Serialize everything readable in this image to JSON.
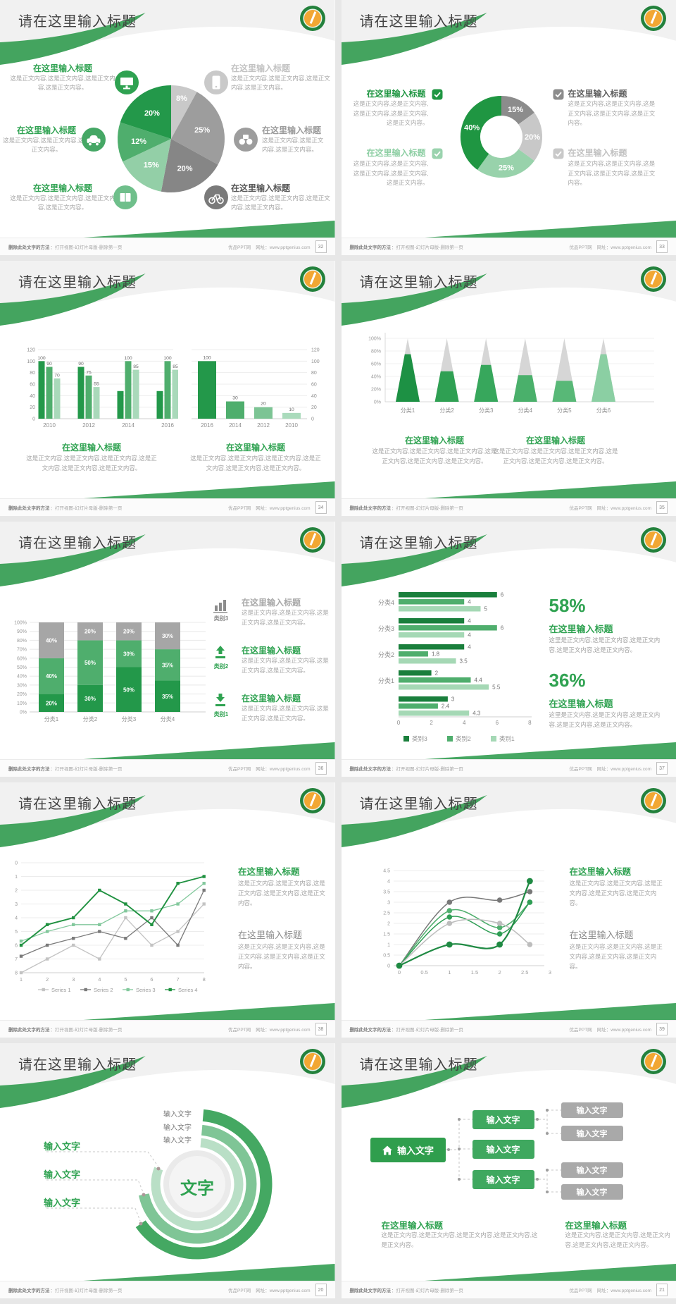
{
  "common": {
    "slide_title": "请在这里输入标题",
    "footer_left_bold": "删除此处文字的方法",
    "footer_left_rest": "：打开视图-幻灯片母版-删除第一页",
    "footer_site": "优品PPT网",
    "footer_url": "网址：www.pptgenius.com"
  },
  "pages": [
    "32",
    "33",
    "34",
    "35",
    "36",
    "37",
    "38",
    "39",
    "20",
    "21"
  ],
  "slides": [
    {
      "callouts": [
        {
          "icon": "monitor",
          "title": "在这里输入标题",
          "body": "这是正文内容,这是正文内容,这是正文内容,这是正文内容。"
        },
        {
          "icon": "car",
          "title": "在这里输入标题",
          "body": "这是正文内容,这是正文内容,这是正文内容。"
        },
        {
          "icon": "book",
          "title": "在这里输入标题",
          "body": "这是正文内容,这是正文内容,这是正文内容,这是正文内容。"
        },
        {
          "icon": "smartphone",
          "title": "在这里输入标题",
          "body": "这是正文内容,这是正文内容,这是正文内容,这是正文内容。"
        },
        {
          "icon": "binoculars",
          "title": "在这里输入标题",
          "body": "这是正文内容,这是正文内容,这是正文内容。"
        },
        {
          "icon": "bicycle",
          "title": "在这里输入标题",
          "body": "这是正文内容,这是正文内容,这是正文内容,这是正文内容。"
        }
      ]
    },
    {
      "callouts": [
        {
          "title": "在这里输入标题",
          "body": "这是正文内容,这是正文内容,这是正文内容,这是正文内容,这是正文内容。"
        },
        {
          "title": "在这里输入标题",
          "body": "这是正文内容,这是正文内容,这是正文内容,这是正文内容,这是正文内容。"
        },
        {
          "title": "在这里输入标题",
          "body": "这是正文内容,这是正文内容,这是正文内容,这是正文内容,这是正文内容。"
        },
        {
          "title": "在这里输入标题",
          "body": "这是正文内容,这是正文内容,这是正文内容,这是正文内容,这是正文内容。"
        }
      ]
    },
    {
      "blocks": [
        {
          "title": "在这里输入标题",
          "body": "这是正文内容,这是正文内容,这是正文内容,这是正文内容,这是正文内容,这是正文内容。"
        },
        {
          "title": "在这里输入标题",
          "body": "这是正文内容,这是正文内容,这是正文内容,这是正文内容,这是正文内容,这是正文内容。"
        }
      ]
    },
    {
      "blocks": [
        {
          "title": "在这里输入标题",
          "body": "这是正文内容,这是正文内容,这是正文内容,这是正文内容,这是正文内容,这是正文内容。"
        },
        {
          "title": "在这里输入标题",
          "body": "这是正文内容,这是正文内容,这是正文内容,这是正文内容,这是正文内容,这是正文内容。"
        }
      ]
    },
    {
      "callouts": [
        {
          "cat": "类别3",
          "icon": "bars",
          "title": "在这里输入标题",
          "body": "这是正文内容,这是正文内容,这是正文内容,这是正文内容。"
        },
        {
          "cat": "类别2",
          "icon": "upload",
          "title": "在这里输入标题",
          "body": "这是正文内容,这是正文内容,这是正文内容,这是正文内容。"
        },
        {
          "cat": "类别1",
          "icon": "download",
          "title": "在这里输入标题",
          "body": "这是正文内容,这是正文内容,这是正文内容,这是正文内容。"
        }
      ]
    },
    {
      "stats": [
        {
          "pct": "58%",
          "title": "在这里输入标题",
          "body": "这里是正文内容,这是正文内容,这是正文内容,这是正文内容,这是正文内容。"
        },
        {
          "pct": "36%",
          "title": "在这里输入标题",
          "body": "这里是正文内容,这是正文内容,这是正文内容,这是正文内容,这是正文内容。"
        }
      ]
    },
    {
      "blocks": [
        {
          "title": "在这里输入标题",
          "body": "这是正文内容,这是正文内容,这是正文内容,这是正文内容,这是正文内容。"
        },
        {
          "title": "在这里输入标题",
          "body": "这是正文内容,这是正文内容,这是正文内容,这是正文内容,这是正文内容。"
        }
      ]
    },
    {
      "blocks": [
        {
          "title": "在这里输入标题",
          "body": "这是正文内容,这是正文内容,这是正文内容,这是正文内容,这是正文内容。"
        },
        {
          "title": "在这里输入标题",
          "body": "这是正文内容,这是正文内容,这是正文内容,这是正文内容,这是正文内容。"
        }
      ]
    },
    {
      "top_labels": [
        "输入文字",
        "输入文字",
        "输入文字"
      ],
      "left_labels": [
        "输入文字",
        "输入文字",
        "输入文字"
      ],
      "center": "文字"
    },
    {
      "root": "输入文字",
      "mid": [
        "输入文字",
        "输入文字",
        "输入文字"
      ],
      "leaves": [
        "输入文字",
        "输入文字",
        "输入文字",
        "输入文字"
      ],
      "blocks": [
        {
          "title": "在这里输入标题",
          "body": "这是正文内容,这是正文内容,这是正文内容,这是正文内容,这是正文内容。"
        },
        {
          "title": "在这里输入标题",
          "body": "这是正文内容,这是正文内容,这是正文内容,这是正文内容,这是正文内容。"
        }
      ]
    }
  ],
  "chart_data": [
    {
      "slide": 1,
      "type": "pie",
      "values": [
        8,
        25,
        20,
        15,
        12,
        20
      ],
      "labels": [
        "8%",
        "25%",
        "20%",
        "15%",
        "12%",
        "20%"
      ],
      "colors": [
        "#c9c9c9",
        "#9d9d9d",
        "#868686",
        "#93cfa7",
        "#4fae6d",
        "#23984a"
      ],
      "start": "12-oclock",
      "direction": "clockwise"
    },
    {
      "slide": 2,
      "type": "pie",
      "subtype": "donut",
      "values": [
        15,
        20,
        25,
        40
      ],
      "labels": [
        "15%",
        "20%",
        "25%",
        "40%"
      ],
      "colors": [
        "#8c8c8c",
        "#c8c8c8",
        "#98d2ab",
        "#1f9642"
      ],
      "start": "12-oclock",
      "direction": "clockwise"
    },
    {
      "slide": 3,
      "type": "bar",
      "variant": "grouped",
      "categories": [
        "2010",
        "2012",
        "2014",
        "2016"
      ],
      "series": [
        {
          "values": [
            100,
            90,
            48,
            48
          ]
        },
        {
          "values": [
            90,
            75,
            100,
            100
          ]
        },
        {
          "values": [
            70,
            55,
            85,
            85
          ]
        }
      ],
      "value_labels": [
        [
          "100",
          "90",
          "70"
        ],
        [
          "90",
          "75",
          "55"
        ],
        [
          "",
          "100",
          "85"
        ],
        [
          "",
          "100",
          "85"
        ]
      ],
      "colors": [
        "#23984a",
        "#4fae6d",
        "#a9d9ba"
      ],
      "ylim": [
        0,
        120
      ],
      "yticks": [
        0,
        20,
        40,
        60,
        80,
        100,
        120
      ]
    },
    {
      "slide": 3,
      "type": "bar",
      "variant": "single",
      "categories": [
        "2016",
        "2014",
        "2012",
        "2010"
      ],
      "values": [
        100,
        30,
        20,
        10
      ],
      "value_labels": [
        "100",
        "30",
        "20",
        "10"
      ],
      "colors": [
        "#23984a",
        "#4fae6d",
        "#7cc494",
        "#aadbbc"
      ],
      "ylim": [
        0,
        120
      ],
      "yticks": [
        0,
        20,
        40,
        60,
        80,
        100,
        120
      ],
      "axis": "right"
    },
    {
      "slide": 4,
      "type": "bar",
      "variant": "cone",
      "categories": [
        "分类1",
        "分类2",
        "分类3",
        "分类4",
        "分类5",
        "分类6"
      ],
      "values_pct": [
        75,
        48,
        58,
        42,
        33,
        75
      ],
      "cone_color": "#d6d6d6",
      "fill_colors": [
        "#1d9144",
        "#2fa053",
        "#37a75c",
        "#4ab06b",
        "#58b877",
        "#8bcfa3"
      ],
      "yticks": [
        "0%",
        "20%",
        "40%",
        "60%",
        "80%",
        "100%"
      ],
      "ylim": [
        0,
        100
      ]
    },
    {
      "slide": 5,
      "type": "bar",
      "variant": "stacked-100",
      "categories": [
        "分类1",
        "分类2",
        "分类3",
        "分类4"
      ],
      "series": [
        {
          "name": "类别1",
          "color": "#23984a",
          "values": [
            20,
            30,
            50,
            35
          ],
          "labels": [
            "20%",
            "30%",
            "50%",
            "35%"
          ]
        },
        {
          "name": "类别2",
          "color": "#4fae6d",
          "values": [
            40,
            50,
            30,
            35
          ],
          "labels": [
            "40%",
            "50%",
            "30%",
            "35%"
          ]
        },
        {
          "name": "类别3",
          "color": "#a6a6a6",
          "values": [
            40,
            20,
            20,
            30
          ],
          "labels": [
            "40%",
            "20%",
            "20%",
            "30%"
          ]
        }
      ],
      "yticks": [
        "0%",
        "10%",
        "20%",
        "30%",
        "40%",
        "50%",
        "60%",
        "70%",
        "80%",
        "90%",
        "100%"
      ],
      "ylim": [
        0,
        100
      ]
    },
    {
      "slide": 6,
      "type": "bar",
      "variant": "horizontal-grouped",
      "xlim": [
        0,
        8
      ],
      "xticks": [
        0,
        2,
        4,
        6,
        8
      ],
      "colors": [
        "#1a7f3c",
        "#4fae6d",
        "#a5d8b5"
      ],
      "legend": [
        "类别3",
        "类别2",
        "类别1"
      ],
      "groups": [
        {
          "label": "分类4",
          "values": [
            6,
            4,
            5
          ],
          "labels": [
            "6",
            "4",
            "5"
          ]
        },
        {
          "label": "分类3",
          "values": [
            4,
            6,
            4
          ],
          "labels": [
            "4",
            "6",
            "4"
          ]
        },
        {
          "label": "分类2",
          "values": [
            4,
            1.8,
            3.5
          ],
          "labels": [
            "4",
            "1.8",
            "3.5"
          ]
        },
        {
          "label": "分类1",
          "values": [
            2,
            4.4,
            5.5
          ],
          "labels": [
            "2",
            "4.4",
            "5.5"
          ]
        },
        {
          "label": "",
          "values": [
            3,
            2.4,
            4.3
          ],
          "labels": [
            "3",
            "2.4",
            "4.3"
          ]
        }
      ]
    },
    {
      "slide": 7,
      "type": "line",
      "x": [
        1,
        2,
        3,
        4,
        5,
        6,
        7,
        8
      ],
      "ylim": [
        0,
        8
      ],
      "yticks": [
        0,
        1,
        2,
        3,
        4,
        5,
        6,
        7,
        8
      ],
      "series": [
        {
          "name": "Series 1",
          "color": "#c3c3c3",
          "values": [
            0,
            1,
            2,
            1,
            4,
            2,
            3,
            5
          ]
        },
        {
          "name": "Series 2",
          "color": "#7a7a7a",
          "values": [
            1.2,
            2,
            2.5,
            3,
            2.5,
            4,
            2,
            6
          ]
        },
        {
          "name": "Series 3",
          "color": "#82c89c",
          "values": [
            2.3,
            3,
            3.5,
            3.5,
            4.5,
            4.5,
            5,
            6.5
          ]
        },
        {
          "name": "Series 4",
          "color": "#1f9140",
          "values": [
            2,
            3.5,
            4,
            6,
            5,
            3.5,
            6.5,
            7
          ]
        }
      ],
      "legend_position": "bottom"
    },
    {
      "slide": 8,
      "type": "line",
      "subtype": "smooth-curve",
      "x": [
        0,
        1,
        2,
        2.6
      ],
      "ylim": [
        0,
        4.5
      ],
      "xticks": [
        "0",
        "0.5",
        "1",
        "1.5",
        "2",
        "2.5",
        "3"
      ],
      "yticks": [
        "0",
        "0.5",
        "1",
        "1.5",
        "2",
        "2.5",
        "3",
        "3.5",
        "4",
        "4.5"
      ],
      "series": [
        {
          "color": "#787878",
          "values": [
            0,
            3,
            3.1,
            3.5
          ]
        },
        {
          "color": "#4fae6d",
          "values": [
            0,
            2.6,
            1.8,
            3
          ]
        },
        {
          "color": "#2f9e55",
          "values": [
            0,
            2.3,
            1.5,
            3
          ]
        },
        {
          "color": "#bdbdbd",
          "values": [
            0,
            2,
            2,
            1
          ]
        },
        {
          "color": "#1f8a43",
          "values": [
            0,
            1,
            1,
            4
          ]
        }
      ]
    },
    {
      "slide": 9,
      "type": "ring-diagram",
      "center_label": "文字",
      "rings": [
        {
          "label": "输入文字",
          "color": "#44a862"
        },
        {
          "label": "输入文字",
          "color": "#7fc596"
        },
        {
          "label": "输入文字",
          "color": "#b9dfc6"
        }
      ]
    },
    {
      "slide": 10,
      "type": "hierarchy",
      "root": "输入文字",
      "mid": [
        "输入文字",
        "输入文字",
        "输入文字"
      ],
      "leaves": [
        "输入文字",
        "输入文字",
        "输入文字",
        "输入文字"
      ]
    }
  ]
}
